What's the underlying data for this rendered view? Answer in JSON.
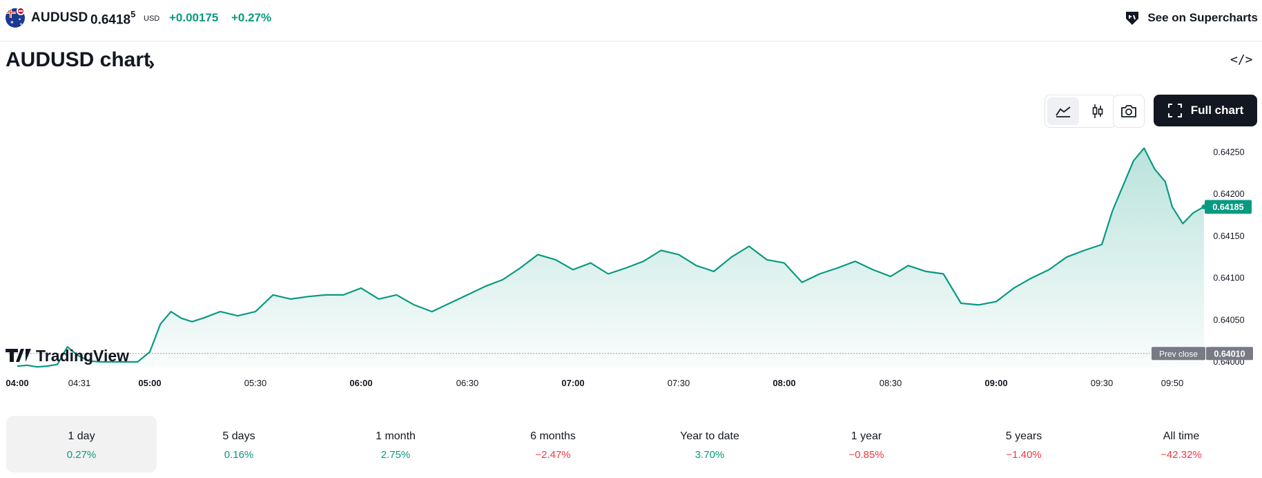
{
  "header": {
    "symbol": "AUDUSD",
    "price_main": "0.6418",
    "price_sup": "5",
    "currency": "USD",
    "change": "+0.00175",
    "change_percent": "+0.27%",
    "supercharts_label": "See on Supercharts"
  },
  "page": {
    "title": "AUDUSD chart",
    "title_chevron": "›",
    "embed_label": "</>"
  },
  "toolbar": {
    "full_chart_label": "Full chart"
  },
  "chart_data": {
    "type": "area",
    "x_ticks": [
      {
        "label": "04:00",
        "bold": true
      },
      {
        "label": "04:31",
        "bold": false
      },
      {
        "label": "05:00",
        "bold": true
      },
      {
        "label": "05:30",
        "bold": false
      },
      {
        "label": "06:00",
        "bold": true
      },
      {
        "label": "06:30",
        "bold": false
      },
      {
        "label": "07:00",
        "bold": true
      },
      {
        "label": "07:30",
        "bold": false
      },
      {
        "label": "08:00",
        "bold": true
      },
      {
        "label": "08:30",
        "bold": false
      },
      {
        "label": "09:00",
        "bold": true
      },
      {
        "label": "09:30",
        "bold": false
      },
      {
        "label": "09:50",
        "bold": false
      }
    ],
    "y_ticks": [
      "0.64000",
      "0.64050",
      "0.64100",
      "0.64150",
      "0.64200",
      "0.64250"
    ],
    "ylim": [
      0.63995,
      0.64262
    ],
    "x": [
      "04:00",
      "04:05",
      "04:10",
      "04:15",
      "04:20",
      "04:25",
      "04:30",
      "04:35",
      "04:40",
      "04:45",
      "04:50",
      "04:55",
      "05:00",
      "05:03",
      "05:06",
      "05:09",
      "05:12",
      "05:15",
      "05:20",
      "05:25",
      "05:30",
      "05:35",
      "05:40",
      "05:45",
      "05:50",
      "05:55",
      "06:00",
      "06:05",
      "06:10",
      "06:15",
      "06:20",
      "06:25",
      "06:30",
      "06:35",
      "06:40",
      "06:45",
      "06:50",
      "06:55",
      "07:00",
      "07:05",
      "07:10",
      "07:15",
      "07:20",
      "07:25",
      "07:30",
      "07:35",
      "07:40",
      "07:45",
      "07:50",
      "07:55",
      "08:00",
      "08:05",
      "08:10",
      "08:15",
      "08:20",
      "08:25",
      "08:30",
      "08:35",
      "08:40",
      "08:45",
      "08:50",
      "08:55",
      "09:00",
      "09:05",
      "09:10",
      "09:15",
      "09:20",
      "09:25",
      "09:30",
      "09:33",
      "09:36",
      "09:39",
      "09:42",
      "09:45",
      "09:48",
      "09:50",
      "09:53",
      "09:56",
      "09:59"
    ],
    "values": [
      0.63995,
      0.63996,
      0.63994,
      0.63995,
      0.63997,
      0.64018,
      0.64008,
      0.64001,
      0.64,
      0.64,
      0.64,
      0.64,
      0.64012,
      0.64045,
      0.6406,
      0.64052,
      0.64048,
      0.64052,
      0.6406,
      0.64055,
      0.6406,
      0.6408,
      0.64075,
      0.64078,
      0.6408,
      0.6408,
      0.64088,
      0.64075,
      0.6408,
      0.64068,
      0.6406,
      0.6407,
      0.6408,
      0.6409,
      0.64098,
      0.64112,
      0.64128,
      0.64122,
      0.6411,
      0.64118,
      0.64105,
      0.64112,
      0.6412,
      0.64133,
      0.64128,
      0.64115,
      0.64108,
      0.64125,
      0.64138,
      0.64122,
      0.64118,
      0.64095,
      0.64105,
      0.64112,
      0.6412,
      0.6411,
      0.64102,
      0.64115,
      0.64108,
      0.64105,
      0.6407,
      0.64068,
      0.64072,
      0.64088,
      0.641,
      0.6411,
      0.64125,
      0.64133,
      0.6414,
      0.6418,
      0.6421,
      0.6424,
      0.64255,
      0.6423,
      0.64215,
      0.64185,
      0.64165,
      0.64178,
      0.64185
    ],
    "current_price": "0.64185",
    "prev_close": {
      "label": "Prev close",
      "value": "0.64010",
      "y": 0.6401
    },
    "colors": {
      "line": "#089981",
      "fill": "#089981",
      "badge": "#089981",
      "prev_badge": "#787b86"
    }
  },
  "watermark": {
    "text": "TradingView"
  },
  "ranges": [
    {
      "label": "1 day",
      "value": "0.27%",
      "dir": "pos",
      "active": true
    },
    {
      "label": "5 days",
      "value": "0.16%",
      "dir": "pos",
      "active": false
    },
    {
      "label": "1 month",
      "value": "2.75%",
      "dir": "pos",
      "active": false
    },
    {
      "label": "6 months",
      "value": "−2.47%",
      "dir": "neg",
      "active": false
    },
    {
      "label": "Year to date",
      "value": "3.70%",
      "dir": "pos",
      "active": false
    },
    {
      "label": "1 year",
      "value": "−0.85%",
      "dir": "neg",
      "active": false
    },
    {
      "label": "5 years",
      "value": "−1.40%",
      "dir": "neg",
      "active": false
    },
    {
      "label": "All time",
      "value": "−42.32%",
      "dir": "neg",
      "active": false
    }
  ]
}
